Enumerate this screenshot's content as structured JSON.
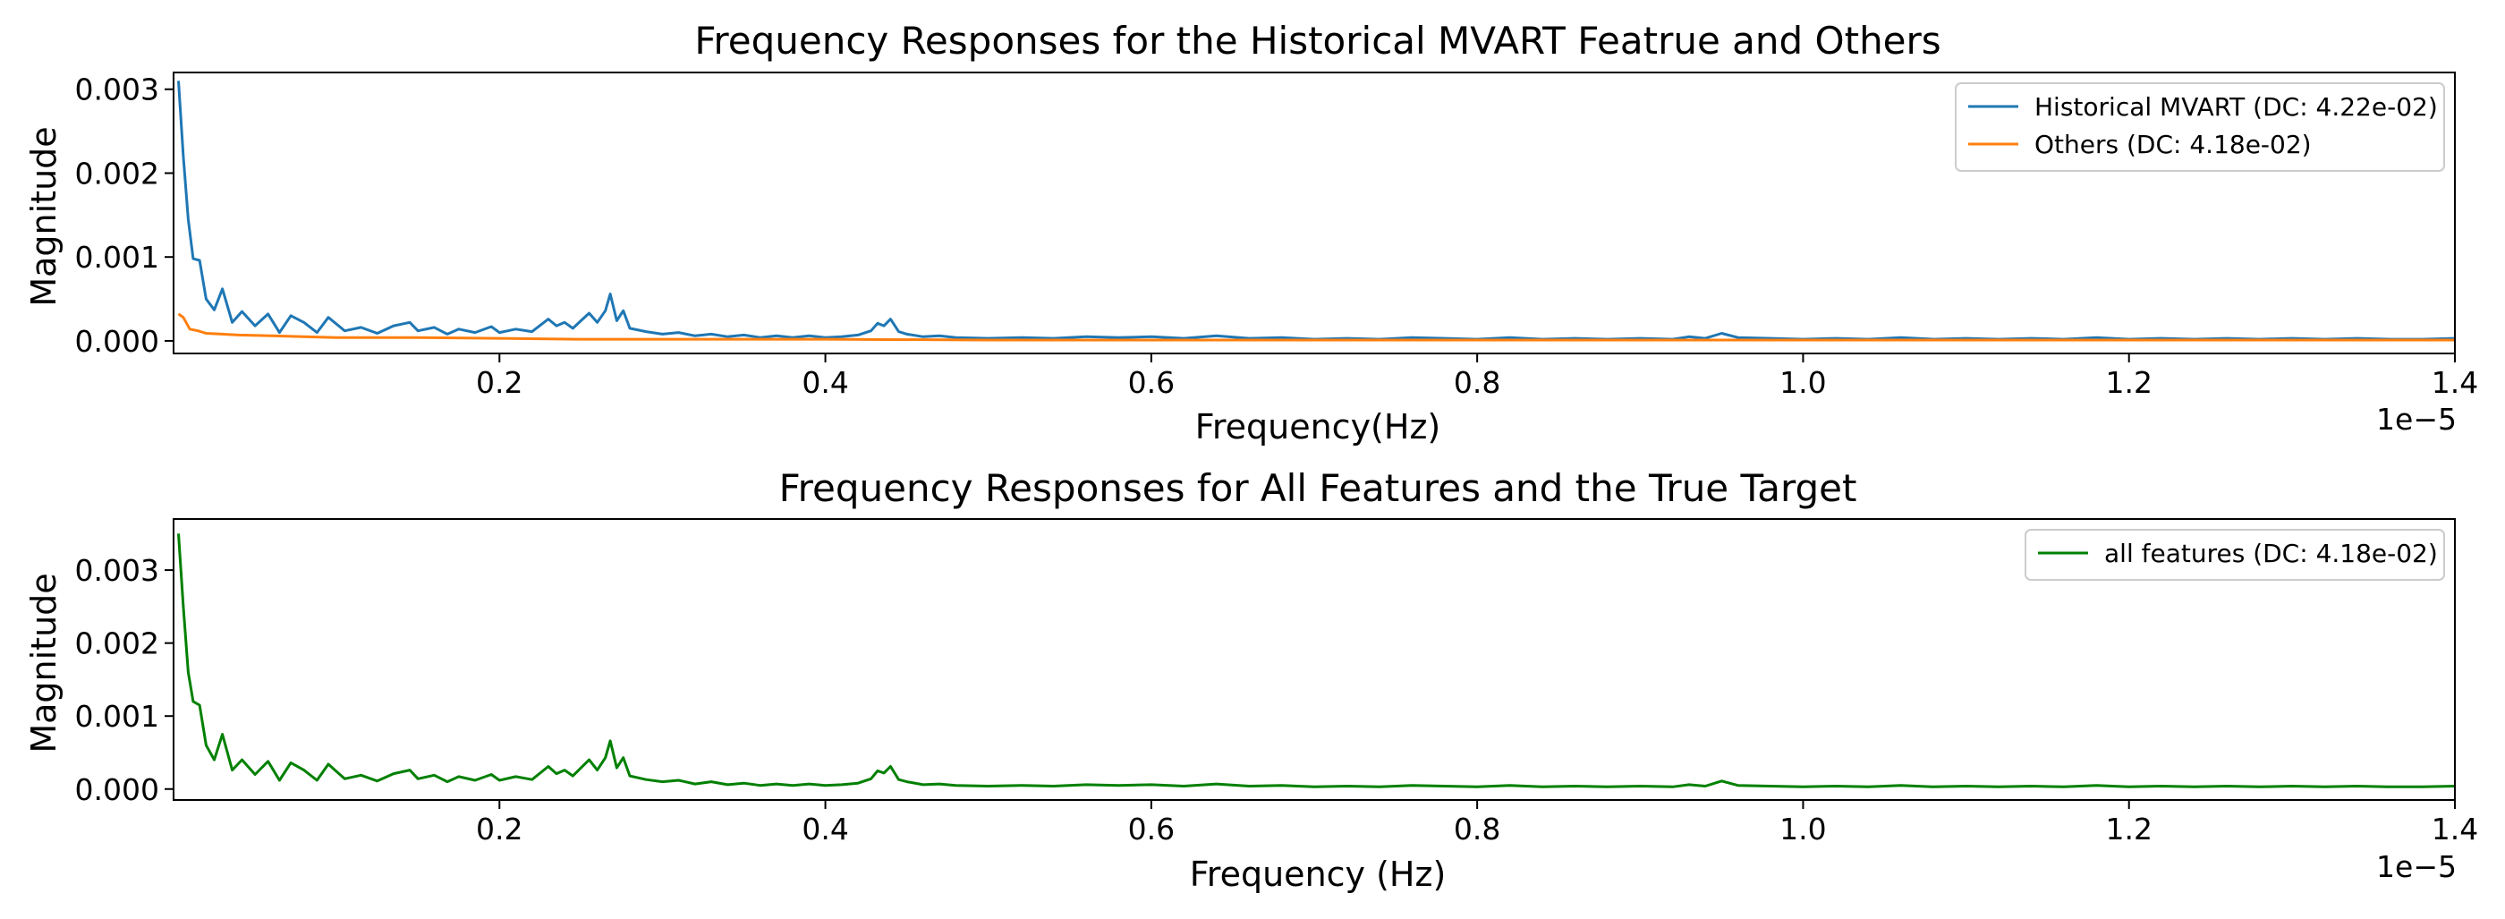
{
  "chart_data": [
    {
      "type": "line",
      "title": "Frequency Responses for the Historical MVART Featrue and Others",
      "xlabel": "Frequency(Hz)",
      "ylabel": "Magnitude",
      "x_offset_text": "1e−5",
      "x_scale_exponent": -5,
      "xlim": [
        0.0,
        1.4
      ],
      "ylim": [
        -0.00015,
        0.0032
      ],
      "xticks": [
        "0.2",
        "0.4",
        "0.6",
        "0.8",
        "1.0",
        "1.2",
        "1.4"
      ],
      "xtick_values": [
        0.2,
        0.4,
        0.6,
        0.8,
        1.0,
        1.2,
        1.4
      ],
      "yticks": [
        "0.000",
        "0.001",
        "0.002",
        "0.003"
      ],
      "ytick_values": [
        0.0,
        0.001,
        0.002,
        0.003
      ],
      "grid": false,
      "legend_position": "top-right",
      "series": [
        {
          "name": "Historical MVART (DC: 4.22e-02)",
          "color": "#1f77b4",
          "points": [
            [
              0.003,
              0.0031
            ],
            [
              0.006,
              0.0022
            ],
            [
              0.009,
              0.00145
            ],
            [
              0.012,
              0.00098
            ],
            [
              0.016,
              0.00096
            ],
            [
              0.02,
              0.0005
            ],
            [
              0.025,
              0.00037
            ],
            [
              0.03,
              0.00062
            ],
            [
              0.036,
              0.00022
            ],
            [
              0.042,
              0.00035
            ],
            [
              0.05,
              0.00018
            ],
            [
              0.058,
              0.00032
            ],
            [
              0.065,
              0.0001
            ],
            [
              0.072,
              0.0003
            ],
            [
              0.08,
              0.00022
            ],
            [
              0.088,
              0.0001
            ],
            [
              0.095,
              0.00028
            ],
            [
              0.105,
              0.00012
            ],
            [
              0.115,
              0.00016
            ],
            [
              0.125,
              9e-05
            ],
            [
              0.135,
              0.00018
            ],
            [
              0.145,
              0.00022
            ],
            [
              0.15,
              0.00012
            ],
            [
              0.16,
              0.00016
            ],
            [
              0.168,
              8e-05
            ],
            [
              0.175,
              0.00014
            ],
            [
              0.185,
              0.0001
            ],
            [
              0.195,
              0.00017
            ],
            [
              0.2,
              0.0001
            ],
            [
              0.21,
              0.00014
            ],
            [
              0.22,
              0.00011
            ],
            [
              0.23,
              0.00026
            ],
            [
              0.235,
              0.00018
            ],
            [
              0.24,
              0.00022
            ],
            [
              0.245,
              0.00015
            ],
            [
              0.25,
              0.00024
            ],
            [
              0.255,
              0.00033
            ],
            [
              0.26,
              0.00022
            ],
            [
              0.265,
              0.00036
            ],
            [
              0.268,
              0.00056
            ],
            [
              0.272,
              0.00024
            ],
            [
              0.276,
              0.00036
            ],
            [
              0.28,
              0.00015
            ],
            [
              0.29,
              0.00011
            ],
            [
              0.3,
              8e-05
            ],
            [
              0.31,
              0.0001
            ],
            [
              0.32,
              6e-05
            ],
            [
              0.33,
              8e-05
            ],
            [
              0.34,
              5e-05
            ],
            [
              0.35,
              7e-05
            ],
            [
              0.36,
              4e-05
            ],
            [
              0.37,
              6e-05
            ],
            [
              0.38,
              4e-05
            ],
            [
              0.39,
              6e-05
            ],
            [
              0.4,
              4e-05
            ],
            [
              0.41,
              5e-05
            ],
            [
              0.42,
              7e-05
            ],
            [
              0.428,
              0.00012
            ],
            [
              0.432,
              0.00021
            ],
            [
              0.436,
              0.00018
            ],
            [
              0.44,
              0.00026
            ],
            [
              0.445,
              0.00011
            ],
            [
              0.45,
              8e-05
            ],
            [
              0.46,
              5e-05
            ],
            [
              0.47,
              6e-05
            ],
            [
              0.48,
              4e-05
            ],
            [
              0.5,
              3e-05
            ],
            [
              0.52,
              4e-05
            ],
            [
              0.54,
              3e-05
            ],
            [
              0.56,
              5e-05
            ],
            [
              0.58,
              4e-05
            ],
            [
              0.6,
              5e-05
            ],
            [
              0.62,
              3e-05
            ],
            [
              0.64,
              6e-05
            ],
            [
              0.66,
              3e-05
            ],
            [
              0.68,
              4e-05
            ],
            [
              0.7,
              2e-05
            ],
            [
              0.72,
              3e-05
            ],
            [
              0.74,
              2e-05
            ],
            [
              0.76,
              4e-05
            ],
            [
              0.78,
              3e-05
            ],
            [
              0.8,
              2e-05
            ],
            [
              0.82,
              4e-05
            ],
            [
              0.84,
              2e-05
            ],
            [
              0.86,
              3e-05
            ],
            [
              0.88,
              2e-05
            ],
            [
              0.9,
              3e-05
            ],
            [
              0.92,
              2e-05
            ],
            [
              0.93,
              5e-05
            ],
            [
              0.94,
              3e-05
            ],
            [
              0.95,
              9e-05
            ],
            [
              0.96,
              4e-05
            ],
            [
              0.98,
              3e-05
            ],
            [
              1.0,
              2e-05
            ],
            [
              1.02,
              3e-05
            ],
            [
              1.04,
              2e-05
            ],
            [
              1.06,
              4e-05
            ],
            [
              1.08,
              2e-05
            ],
            [
              1.1,
              3e-05
            ],
            [
              1.12,
              2e-05
            ],
            [
              1.14,
              3e-05
            ],
            [
              1.16,
              2e-05
            ],
            [
              1.18,
              4e-05
            ],
            [
              1.2,
              2e-05
            ],
            [
              1.22,
              3e-05
            ],
            [
              1.24,
              2e-05
            ],
            [
              1.26,
              3e-05
            ],
            [
              1.28,
              2e-05
            ],
            [
              1.3,
              3e-05
            ],
            [
              1.32,
              2e-05
            ],
            [
              1.34,
              3e-05
            ],
            [
              1.36,
              2e-05
            ],
            [
              1.38,
              2e-05
            ],
            [
              1.4,
              3e-05
            ]
          ]
        },
        {
          "name": "Others (DC: 4.18e-02)",
          "color": "#ff7f0e",
          "points": [
            [
              0.003,
              0.00032
            ],
            [
              0.006,
              0.00028
            ],
            [
              0.01,
              0.00014
            ],
            [
              0.015,
              0.00012
            ],
            [
              0.02,
              9e-05
            ],
            [
              0.03,
              8e-05
            ],
            [
              0.04,
              7e-05
            ],
            [
              0.06,
              6e-05
            ],
            [
              0.08,
              5e-05
            ],
            [
              0.1,
              4e-05
            ],
            [
              0.15,
              4e-05
            ],
            [
              0.2,
              3e-05
            ],
            [
              0.25,
              2e-05
            ],
            [
              0.3,
              2e-05
            ],
            [
              0.4,
              2e-05
            ],
            [
              0.5,
              1e-05
            ],
            [
              0.6,
              1e-05
            ],
            [
              0.7,
              1e-05
            ],
            [
              0.8,
              1e-05
            ],
            [
              0.9,
              1e-05
            ],
            [
              1.0,
              1e-05
            ],
            [
              1.1,
              1e-05
            ],
            [
              1.2,
              1e-05
            ],
            [
              1.3,
              1e-05
            ],
            [
              1.4,
              1e-05
            ]
          ]
        }
      ]
    },
    {
      "type": "line",
      "title": "Frequency Responses for All Features and the True Target",
      "xlabel": "Frequency (Hz)",
      "ylabel": "Magnitude",
      "x_offset_text": "1e−5",
      "x_scale_exponent": -5,
      "xlim": [
        0.0,
        1.4
      ],
      "ylim": [
        -0.00015,
        0.0037
      ],
      "xticks": [
        "0.2",
        "0.4",
        "0.6",
        "0.8",
        "1.0",
        "1.2",
        "1.4"
      ],
      "xtick_values": [
        0.2,
        0.4,
        0.6,
        0.8,
        1.0,
        1.2,
        1.4
      ],
      "yticks": [
        "0.000",
        "0.001",
        "0.002",
        "0.003"
      ],
      "ytick_values": [
        0.0,
        0.001,
        0.002,
        0.003
      ],
      "grid": false,
      "legend_position": "top-right",
      "series": [
        {
          "name": "all features (DC: 4.18e-02)",
          "color": "#008000",
          "points": [
            [
              0.003,
              0.0035
            ],
            [
              0.006,
              0.0025
            ],
            [
              0.009,
              0.0016
            ],
            [
              0.012,
              0.0012
            ],
            [
              0.016,
              0.00115
            ],
            [
              0.02,
              0.0006
            ],
            [
              0.025,
              0.0004
            ],
            [
              0.03,
              0.00075
            ],
            [
              0.036,
              0.00026
            ],
            [
              0.042,
              0.0004
            ],
            [
              0.05,
              0.0002
            ],
            [
              0.058,
              0.00038
            ],
            [
              0.065,
              0.00012
            ],
            [
              0.072,
              0.00036
            ],
            [
              0.08,
              0.00026
            ],
            [
              0.088,
              0.00012
            ],
            [
              0.095,
              0.00034
            ],
            [
              0.105,
              0.00014
            ],
            [
              0.115,
              0.00019
            ],
            [
              0.125,
              0.00011
            ],
            [
              0.135,
              0.00021
            ],
            [
              0.145,
              0.00026
            ],
            [
              0.15,
              0.00014
            ],
            [
              0.16,
              0.00019
            ],
            [
              0.168,
              0.0001
            ],
            [
              0.175,
              0.00017
            ],
            [
              0.185,
              0.00012
            ],
            [
              0.195,
              0.0002
            ],
            [
              0.2,
              0.00012
            ],
            [
              0.21,
              0.00017
            ],
            [
              0.22,
              0.00013
            ],
            [
              0.23,
              0.00031
            ],
            [
              0.235,
              0.00021
            ],
            [
              0.24,
              0.00026
            ],
            [
              0.245,
              0.00018
            ],
            [
              0.25,
              0.00029
            ],
            [
              0.255,
              0.0004
            ],
            [
              0.26,
              0.00026
            ],
            [
              0.265,
              0.00043
            ],
            [
              0.268,
              0.00066
            ],
            [
              0.272,
              0.00029
            ],
            [
              0.276,
              0.00043
            ],
            [
              0.28,
              0.00018
            ],
            [
              0.29,
              0.00013
            ],
            [
              0.3,
              0.0001
            ],
            [
              0.31,
              0.00012
            ],
            [
              0.32,
              7e-05
            ],
            [
              0.33,
              0.0001
            ],
            [
              0.34,
              6e-05
            ],
            [
              0.35,
              8e-05
            ],
            [
              0.36,
              5e-05
            ],
            [
              0.37,
              7e-05
            ],
            [
              0.38,
              5e-05
            ],
            [
              0.39,
              7e-05
            ],
            [
              0.4,
              5e-05
            ],
            [
              0.41,
              6e-05
            ],
            [
              0.42,
              8e-05
            ],
            [
              0.428,
              0.00014
            ],
            [
              0.432,
              0.00025
            ],
            [
              0.436,
              0.00022
            ],
            [
              0.44,
              0.00031
            ],
            [
              0.445,
              0.00013
            ],
            [
              0.45,
              0.0001
            ],
            [
              0.46,
              6e-05
            ],
            [
              0.47,
              7e-05
            ],
            [
              0.48,
              5e-05
            ],
            [
              0.5,
              4e-05
            ],
            [
              0.52,
              5e-05
            ],
            [
              0.54,
              4e-05
            ],
            [
              0.56,
              6e-05
            ],
            [
              0.58,
              5e-05
            ],
            [
              0.6,
              6e-05
            ],
            [
              0.62,
              4e-05
            ],
            [
              0.64,
              7e-05
            ],
            [
              0.66,
              4e-05
            ],
            [
              0.68,
              5e-05
            ],
            [
              0.7,
              3e-05
            ],
            [
              0.72,
              4e-05
            ],
            [
              0.74,
              3e-05
            ],
            [
              0.76,
              5e-05
            ],
            [
              0.78,
              4e-05
            ],
            [
              0.8,
              3e-05
            ],
            [
              0.82,
              5e-05
            ],
            [
              0.84,
              3e-05
            ],
            [
              0.86,
              4e-05
            ],
            [
              0.88,
              3e-05
            ],
            [
              0.9,
              4e-05
            ],
            [
              0.92,
              3e-05
            ],
            [
              0.93,
              6e-05
            ],
            [
              0.94,
              4e-05
            ],
            [
              0.95,
              0.00011
            ],
            [
              0.96,
              5e-05
            ],
            [
              0.98,
              4e-05
            ],
            [
              1.0,
              3e-05
            ],
            [
              1.02,
              4e-05
            ],
            [
              1.04,
              3e-05
            ],
            [
              1.06,
              5e-05
            ],
            [
              1.08,
              3e-05
            ],
            [
              1.1,
              4e-05
            ],
            [
              1.12,
              3e-05
            ],
            [
              1.14,
              4e-05
            ],
            [
              1.16,
              3e-05
            ],
            [
              1.18,
              5e-05
            ],
            [
              1.2,
              3e-05
            ],
            [
              1.22,
              4e-05
            ],
            [
              1.24,
              3e-05
            ],
            [
              1.26,
              4e-05
            ],
            [
              1.28,
              3e-05
            ],
            [
              1.3,
              4e-05
            ],
            [
              1.32,
              3e-05
            ],
            [
              1.34,
              4e-05
            ],
            [
              1.36,
              3e-05
            ],
            [
              1.38,
              3e-05
            ],
            [
              1.4,
              4e-05
            ]
          ]
        }
      ]
    }
  ]
}
